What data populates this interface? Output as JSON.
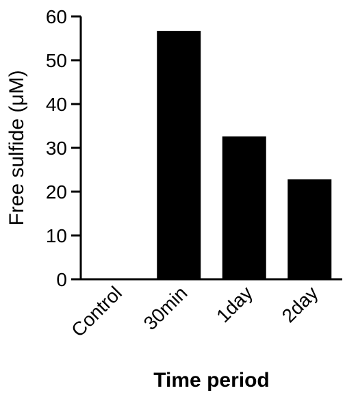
{
  "chart_data": {
    "type": "bar",
    "title": "",
    "xlabel": "Time period",
    "ylabel": "Free sulfide (μM)",
    "categories": [
      "Control",
      "30min",
      "1day",
      "2day"
    ],
    "values": [
      0,
      56.7,
      32.6,
      22.8
    ],
    "ylim": [
      0,
      60
    ],
    "yticks": [
      0,
      10,
      20,
      30,
      40,
      50,
      60
    ],
    "grid": false,
    "legend": "none",
    "bar_color": "#000000",
    "axis_color": "#000000"
  }
}
